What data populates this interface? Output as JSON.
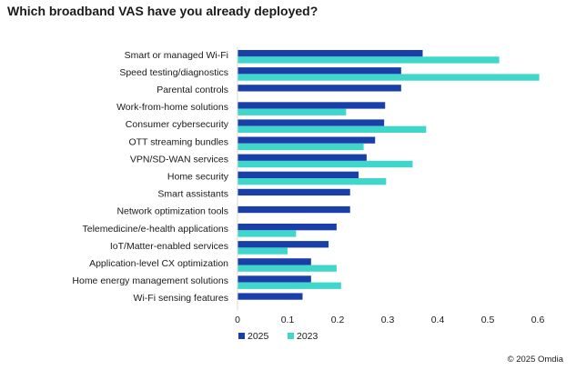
{
  "chart_data": {
    "type": "bar",
    "orientation": "horizontal",
    "title": "Which broadband VAS have you already deployed?",
    "categories": [
      "Smart or managed Wi-Fi",
      "Speed testing/diagnostics",
      "Parental controls",
      "Work-from-home solutions",
      "Consumer cybersecurity",
      "OTT streaming bundles",
      "VPN/SD-WAN services",
      "Home security",
      "Smart assistants",
      "Network optimization tools",
      "Telemedicine/e-health applications",
      "IoT/Matter-enabled services",
      "Application-level CX optimization",
      "Home energy management solutions",
      "Wi-Fi sensing features"
    ],
    "series": [
      {
        "name": "2025",
        "color": "#1a3fa8",
        "values": [
          0.37,
          0.327,
          0.327,
          0.295,
          0.293,
          0.275,
          0.258,
          0.242,
          0.225,
          0.225,
          0.198,
          0.182,
          0.147,
          0.147,
          0.13
        ]
      },
      {
        "name": "2023",
        "color": "#3fd6cb",
        "values": [
          0.523,
          0.603,
          null,
          0.217,
          0.377,
          0.252,
          0.35,
          0.297,
          null,
          null,
          0.117,
          0.1,
          0.198,
          0.207,
          null
        ]
      }
    ],
    "xlim": [
      0,
      0.6
    ],
    "xticks": [
      "0",
      "0.1",
      "0.2",
      "0.3",
      "0.4",
      "0.5",
      "0.6"
    ],
    "legend_position": "bottom-left",
    "grid": false
  },
  "copyright": "© 2025 Omdia"
}
